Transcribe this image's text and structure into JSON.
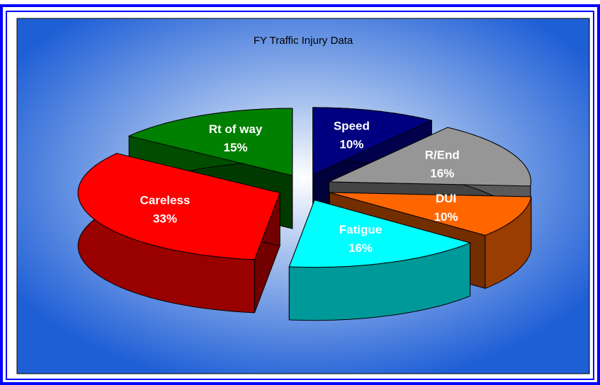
{
  "chart_data": {
    "type": "pie3d",
    "title": "FY Traffic Injury Data",
    "categories": [
      "Speed",
      "R/End",
      "DUI",
      "Fatigue",
      "Careless",
      "Rt of way"
    ],
    "values": [
      10,
      16,
      10,
      16,
      33,
      15
    ],
    "value_labels": [
      "10%",
      "16%",
      "10%",
      "16%",
      "33%",
      "15%"
    ],
    "colors": [
      "#000080",
      "#969696",
      "#ff6600",
      "#00ffff",
      "#ff0000",
      "#008000"
    ]
  }
}
